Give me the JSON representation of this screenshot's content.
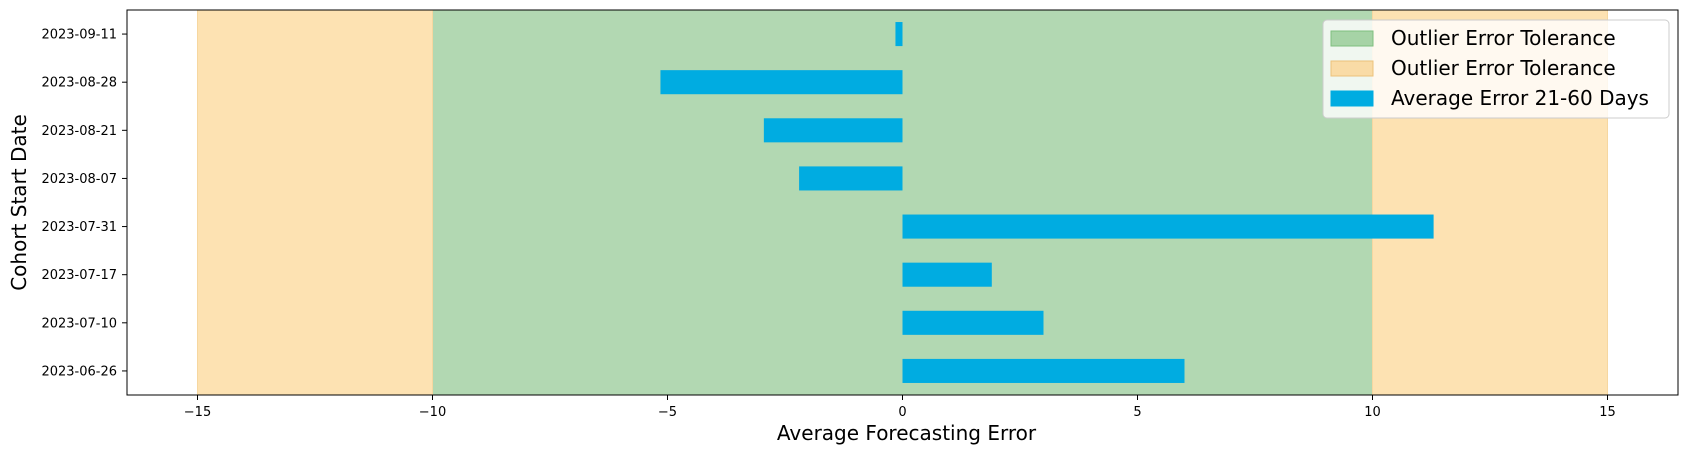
{
  "chart_data": {
    "type": "bar",
    "orientation": "horizontal",
    "categories": [
      "2023-06-26",
      "2023-07-10",
      "2023-07-17",
      "2023-07-31",
      "2023-08-07",
      "2023-08-21",
      "2023-08-28",
      "2023-09-11"
    ],
    "series": [
      {
        "name": "Average Error 21-60 Days",
        "color": "#00ace1",
        "values": [
          6.0,
          3.0,
          1.9,
          11.3,
          -2.2,
          -2.95,
          -5.15,
          -0.15
        ]
      }
    ],
    "bands": [
      {
        "name": "Outlier Error Tolerance",
        "from": -10,
        "to": 10,
        "color": "#b2d8b2"
      },
      {
        "name": "Outlier Error Tolerance",
        "from": -15,
        "to": -10,
        "color": "#fde2b2"
      },
      {
        "name": "Outlier Error Tolerance",
        "from": 10,
        "to": 15,
        "color": "#fde2b2"
      }
    ],
    "legend": [
      {
        "label": "Outlier Error Tolerance",
        "color": "#a6d3a6",
        "edge": "#7fbf7f"
      },
      {
        "label": "Outlier Error Tolerance",
        "color": "#f9dba6",
        "edge": "#ecc27a"
      },
      {
        "label": "Average Error 21-60 Days",
        "color": "#00ace1",
        "edge": "#00ace1"
      }
    ],
    "legend_position": "top-right",
    "xlabel": "Average Forecasting Error",
    "ylabel": "Cohort Start Date",
    "xlim": [
      -16.5,
      16.5
    ],
    "xticks": [
      -15,
      -10,
      -5,
      0,
      5,
      10,
      15
    ],
    "xtick_labels": [
      "−15",
      "−10",
      "−5",
      "0",
      "5",
      "10",
      "15"
    ],
    "grid": false
  }
}
